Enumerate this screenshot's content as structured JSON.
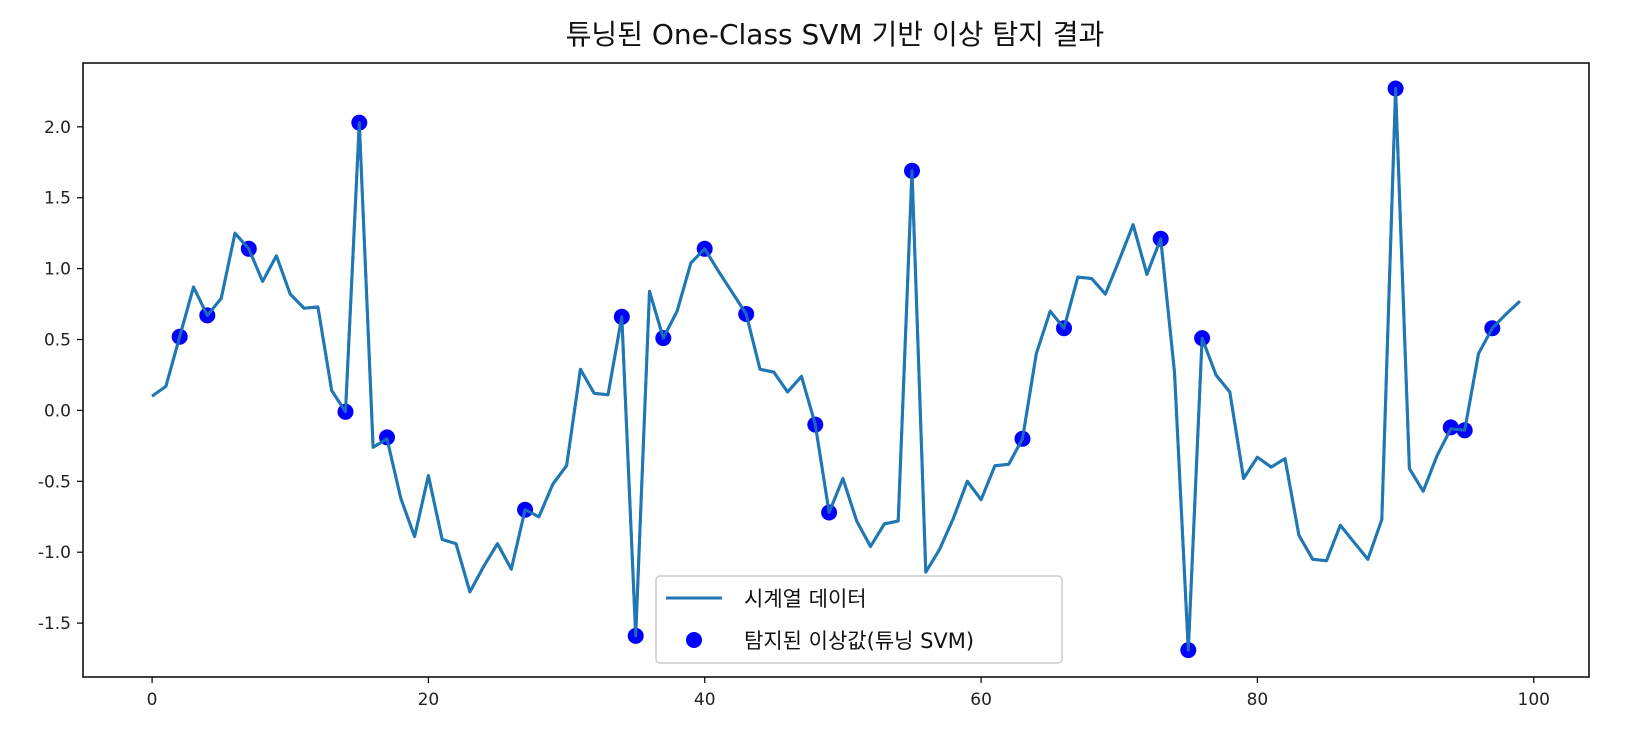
{
  "chart_data": {
    "type": "line",
    "title": "튜닝된 One-Class SVM 기반 이상 탐지 결과",
    "xlabel": "",
    "ylabel": "",
    "xlim": [
      -5,
      104
    ],
    "ylim": [
      -1.88,
      2.45
    ],
    "x_ticks": [
      0,
      20,
      40,
      60,
      80,
      100
    ],
    "y_ticks": [
      -1.5,
      -1.0,
      -0.5,
      0.0,
      0.5,
      1.0,
      1.5,
      2.0
    ],
    "y_tick_labels": [
      "-1.5",
      "-1.0",
      "-0.5",
      "0.0",
      "0.5",
      "1.0",
      "1.5",
      "2.0"
    ],
    "grid": false,
    "legend_position": "bottom-center",
    "series": [
      {
        "name": "시계열 데이터",
        "type": "line",
        "color": "#1f77b4",
        "x": [
          0,
          1,
          2,
          3,
          4,
          5,
          6,
          7,
          8,
          9,
          10,
          11,
          12,
          13,
          14,
          15,
          16,
          17,
          18,
          19,
          20,
          21,
          22,
          23,
          24,
          25,
          26,
          27,
          28,
          29,
          30,
          31,
          32,
          33,
          34,
          35,
          36,
          37,
          38,
          39,
          40,
          41,
          42,
          43,
          44,
          45,
          46,
          47,
          48,
          49,
          50,
          51,
          52,
          53,
          54,
          55,
          56,
          57,
          58,
          59,
          60,
          61,
          62,
          63,
          64,
          65,
          66,
          67,
          68,
          69,
          70,
          71,
          72,
          73,
          74,
          75,
          76,
          77,
          78,
          79,
          80,
          81,
          82,
          83,
          84,
          85,
          86,
          87,
          88,
          89,
          90,
          91,
          92,
          93,
          94,
          95,
          96,
          97,
          98,
          99
        ],
        "y": [
          0.1,
          0.17,
          0.52,
          0.87,
          0.67,
          0.79,
          1.25,
          1.14,
          0.91,
          1.09,
          0.82,
          0.72,
          0.73,
          0.14,
          -0.01,
          2.03,
          -0.26,
          -0.2,
          -0.62,
          -0.89,
          -0.46,
          -0.91,
          -0.94,
          -1.28,
          -1.1,
          -0.94,
          -1.12,
          -0.7,
          -0.75,
          -0.52,
          -0.39,
          0.29,
          0.12,
          0.11,
          0.66,
          -1.59,
          0.84,
          0.51,
          0.7,
          1.04,
          1.14,
          0.98,
          0.83,
          0.68,
          0.29,
          0.27,
          0.13,
          0.24,
          -0.1,
          -0.72,
          -0.48,
          -0.78,
          -0.96,
          -0.8,
          -0.78,
          1.69,
          -1.14,
          -0.98,
          -0.76,
          -0.5,
          -0.63,
          -0.39,
          -0.38,
          -0.2,
          0.4,
          0.7,
          0.58,
          0.94,
          0.93,
          0.82,
          1.06,
          1.31,
          0.96,
          1.21,
          0.27,
          -1.69,
          0.51,
          0.25,
          0.13,
          -0.48,
          -0.33,
          -0.4,
          -0.34,
          -0.88,
          -1.05,
          -1.06,
          -0.81,
          -0.93,
          -1.05,
          -0.77,
          2.27,
          -0.41,
          -0.57,
          -0.32,
          -0.13,
          -0.14,
          0.4,
          0.58,
          0.68,
          0.77
        ]
      },
      {
        "name": "탐지된 이상값(튜닝 SVM)",
        "type": "scatter",
        "color": "#0000ff",
        "x": [
          2,
          4,
          7,
          14,
          15,
          17,
          27,
          34,
          35,
          37,
          40,
          43,
          48,
          49,
          55,
          63,
          66,
          73,
          75,
          76,
          90,
          94,
          95,
          97
        ],
        "y": [
          0.52,
          0.67,
          1.14,
          -0.01,
          2.03,
          -0.19,
          -0.7,
          0.66,
          -1.59,
          0.51,
          1.14,
          0.68,
          -0.1,
          -0.72,
          1.69,
          -0.2,
          0.58,
          1.21,
          -1.69,
          0.51,
          2.27,
          -0.12,
          -0.14,
          0.58
        ]
      }
    ]
  }
}
